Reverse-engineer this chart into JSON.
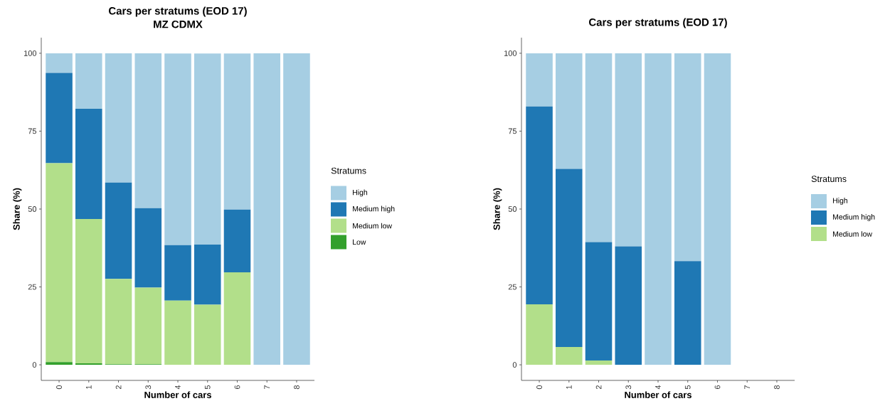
{
  "chart_data": [
    {
      "type": "bar",
      "stacked": true,
      "title": "Cars per stratums (EOD 17)",
      "subtitle": "MZ CDMX",
      "xlabel": "Number of cars",
      "ylabel": "Share (%)",
      "legend_title": "Stratums",
      "legend": "right",
      "categories": [
        "0",
        "1",
        "2",
        "3",
        "4",
        "5",
        "6",
        "7",
        "8"
      ],
      "ylim": [
        -5,
        105
      ],
      "yticks": [
        0,
        25,
        50,
        75,
        100
      ],
      "series": [
        {
          "name": "Low",
          "color": "#33a02c",
          "values": [
            0.9,
            0.5,
            0.2,
            0.2,
            0,
            0,
            0,
            0,
            0
          ]
        },
        {
          "name": "Medium low",
          "color": "#b2df8a",
          "values": [
            63.8,
            46.3,
            27.4,
            24.6,
            20.6,
            19.3,
            29.7,
            0,
            0
          ]
        },
        {
          "name": "Medium high",
          "color": "#1f78b4",
          "values": [
            29.0,
            35.4,
            30.9,
            25.5,
            17.8,
            19.3,
            20.1,
            0,
            0
          ]
        },
        {
          "name": "High",
          "color": "#a6cee3",
          "values": [
            6.3,
            17.8,
            41.5,
            49.7,
            61.5,
            61.3,
            50.1,
            100,
            100
          ]
        }
      ]
    },
    {
      "type": "bar",
      "stacked": true,
      "title": "Cars per stratums (EOD 17)",
      "xlabel": "Number of cars",
      "ylabel": "Share (%)",
      "legend_title": "Stratums",
      "legend": "right",
      "categories": [
        "0",
        "1",
        "2",
        "3",
        "4",
        "5",
        "6",
        "7",
        "8"
      ],
      "ylim": [
        -5,
        105
      ],
      "yticks": [
        0,
        25,
        50,
        75,
        100
      ],
      "series": [
        {
          "name": "Medium low",
          "color": "#b2df8a",
          "values": [
            19.4,
            5.7,
            1.4,
            0,
            0,
            0,
            0,
            null,
            null
          ]
        },
        {
          "name": "Medium high",
          "color": "#1f78b4",
          "values": [
            63.5,
            57.2,
            38.0,
            38.0,
            0,
            33.3,
            0,
            null,
            null
          ]
        },
        {
          "name": "High",
          "color": "#a6cee3",
          "values": [
            17.1,
            37.1,
            60.6,
            62.0,
            100,
            66.7,
            100,
            null,
            null
          ]
        }
      ]
    }
  ]
}
